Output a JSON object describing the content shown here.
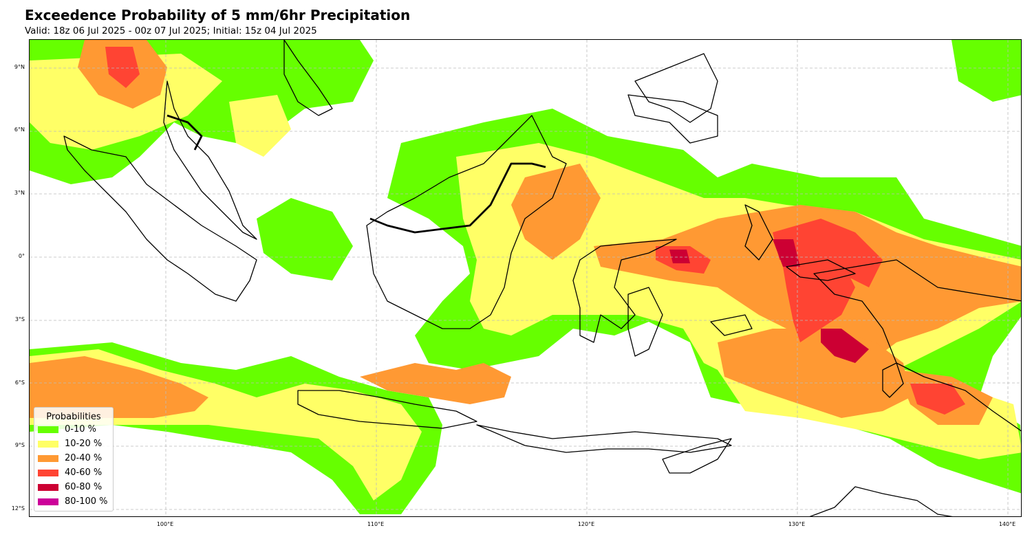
{
  "title": "Exceedence Probability of 5 mm/6hr Precipitation",
  "subtitle": "Valid: 18z 06 Jul 2025 - 00z 07 Jul 2025; Initial: 15z 04 Jul 2025",
  "axes": {
    "lat_ticks": [
      "9°N",
      "6°N",
      "3°N",
      "0°",
      "3°S",
      "6°S",
      "9°S",
      "12°S"
    ],
    "lon_ticks": [
      "100°E",
      "110°E",
      "120°E",
      "130°E",
      "140°E"
    ],
    "lat_values": [
      9,
      6,
      3,
      0,
      -3,
      -6,
      -9,
      -12
    ],
    "lon_values": [
      100,
      110,
      120,
      130,
      140
    ],
    "lon_range": [
      93.5,
      140.7
    ],
    "lat_range": [
      -12.4,
      10.3
    ],
    "grid": true
  },
  "legend": {
    "title": "Probabilities",
    "placement": "bottom-left",
    "items": [
      {
        "label": "0-10 %",
        "color": "#66ff00"
      },
      {
        "label": "10-20 %",
        "color": "#ffff66"
      },
      {
        "label": "20-40 %",
        "color": "#ff9933"
      },
      {
        "label": "40-60 %",
        "color": "#ff4433"
      },
      {
        "label": "60-80 %",
        "color": "#cc0033"
      },
      {
        "label": "80-100 %",
        "color": "#cc0099"
      }
    ]
  }
}
